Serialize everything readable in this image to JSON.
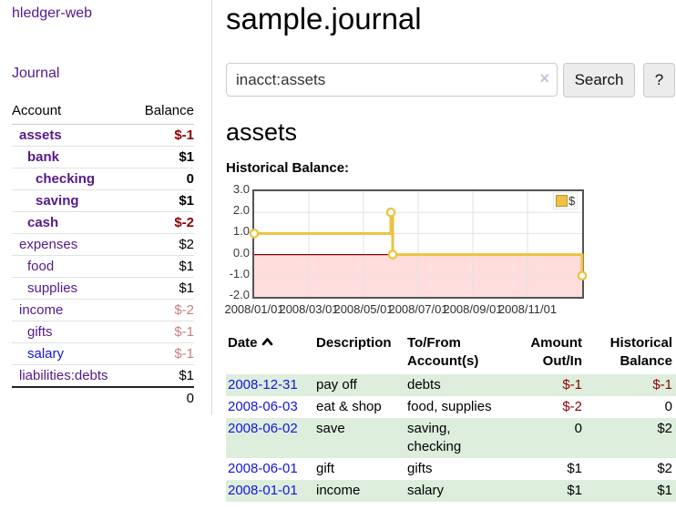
{
  "app": {
    "title": "hledger-web"
  },
  "colors": {
    "link_visited": "#551a8b",
    "link_unvisited": "#1414dd",
    "negative_strong": "#8b0000",
    "negative_soft": "#c58080",
    "row_stripe_green": "#ddeedd",
    "series_gold": "#edc240"
  },
  "sidebar": {
    "journal_label": "Journal",
    "accounts_header": {
      "account": "Account",
      "balance": "Balance"
    },
    "accounts": [
      {
        "name": "assets",
        "depth": 1,
        "bold": true,
        "link": "visited",
        "balance": "$-1",
        "negative": "strong"
      },
      {
        "name": "bank",
        "depth": 2,
        "bold": true,
        "link": "visited",
        "balance": "$1",
        "negative": null
      },
      {
        "name": "checking",
        "depth": 3,
        "bold": true,
        "link": "visited",
        "balance": "0",
        "negative": null
      },
      {
        "name": "saving",
        "depth": 3,
        "bold": true,
        "link": "visited",
        "balance": "$1",
        "negative": null
      },
      {
        "name": "cash",
        "depth": 2,
        "bold": true,
        "link": "visited",
        "balance": "$-2",
        "negative": "strong"
      },
      {
        "name": "expenses",
        "depth": 1,
        "bold": false,
        "link": "visited",
        "balance": "$2",
        "negative": null
      },
      {
        "name": "food",
        "depth": 2,
        "bold": false,
        "link": "visited",
        "balance": "$1",
        "negative": null
      },
      {
        "name": "supplies",
        "depth": 2,
        "bold": false,
        "link": "visited",
        "balance": "$1",
        "negative": null
      },
      {
        "name": "income",
        "depth": 1,
        "bold": false,
        "link": "visited",
        "balance": "$-2",
        "negative": "soft"
      },
      {
        "name": "gifts",
        "depth": 2,
        "bold": false,
        "link": "visited",
        "balance": "$-1",
        "negative": "soft"
      },
      {
        "name": "salary",
        "depth": 2,
        "bold": false,
        "link": "unvisited",
        "balance": "$-1",
        "negative": "soft"
      },
      {
        "name": "liabilities:debts",
        "depth": 1,
        "bold": false,
        "link": "visited",
        "balance": "$1",
        "negative": null
      }
    ],
    "total": "0"
  },
  "main": {
    "title": "sample.journal",
    "search": {
      "value": "inacct:assets",
      "clear_icon": "×",
      "button_label": "Search",
      "help_label": "?"
    },
    "account_heading": "assets",
    "chart_heading": "Historical Balance:"
  },
  "chart_data": {
    "type": "line",
    "step": true,
    "title": "Historical Balance:",
    "series": [
      {
        "name": "$",
        "color": "#edc240",
        "points": [
          {
            "date": "2008-01-01",
            "value": 1
          },
          {
            "date": "2008-06-01",
            "value": 2
          },
          {
            "date": "2008-06-03",
            "value": 0
          },
          {
            "date": "2008-12-31",
            "value": -1
          }
        ]
      }
    ],
    "x_ticks": [
      "2008/01/01",
      "2008/03/01",
      "2008/05/01",
      "2008/07/01",
      "2008/09/01",
      "2008/11/01"
    ],
    "y_ticks": [
      3.0,
      2.0,
      1.0,
      0.0,
      -1.0,
      -2.0
    ],
    "xlim": [
      "2008-01-01",
      "2009-01-01"
    ],
    "ylim": [
      -2,
      3
    ],
    "grid": true,
    "negative_region_color": "#ffdddd",
    "zero_line_color": "#8b0000",
    "legend": {
      "label": "$",
      "swatch_color": "#edc240",
      "position": "top-right"
    }
  },
  "register": {
    "header": {
      "date": "Date",
      "description": "Description",
      "account_line1": "To/From",
      "account_line2": "Account(s)",
      "amount_line1": "Amount",
      "amount_line2": "Out/In",
      "balance_line1": "Historical",
      "balance_line2": "Balance"
    },
    "rows": [
      {
        "date": "2008-12-31",
        "description": "pay off",
        "accounts": "debts",
        "amount": "$-1",
        "amount_negative": true,
        "balance": "$-1",
        "balance_negative": true
      },
      {
        "date": "2008-06-03",
        "description": "eat & shop",
        "accounts": "food, supplies",
        "amount": "$-2",
        "amount_negative": true,
        "balance": "0",
        "balance_negative": false
      },
      {
        "date": "2008-06-02",
        "description": "save",
        "accounts": "saving, checking",
        "amount": "0",
        "amount_negative": false,
        "balance": "$2",
        "balance_negative": false
      },
      {
        "date": "2008-06-01",
        "description": "gift",
        "accounts": "gifts",
        "amount": "$1",
        "amount_negative": false,
        "balance": "$2",
        "balance_negative": false
      },
      {
        "date": "2008-01-01",
        "description": "income",
        "accounts": "salary",
        "amount": "$1",
        "amount_negative": false,
        "balance": "$1",
        "balance_negative": false
      }
    ]
  }
}
